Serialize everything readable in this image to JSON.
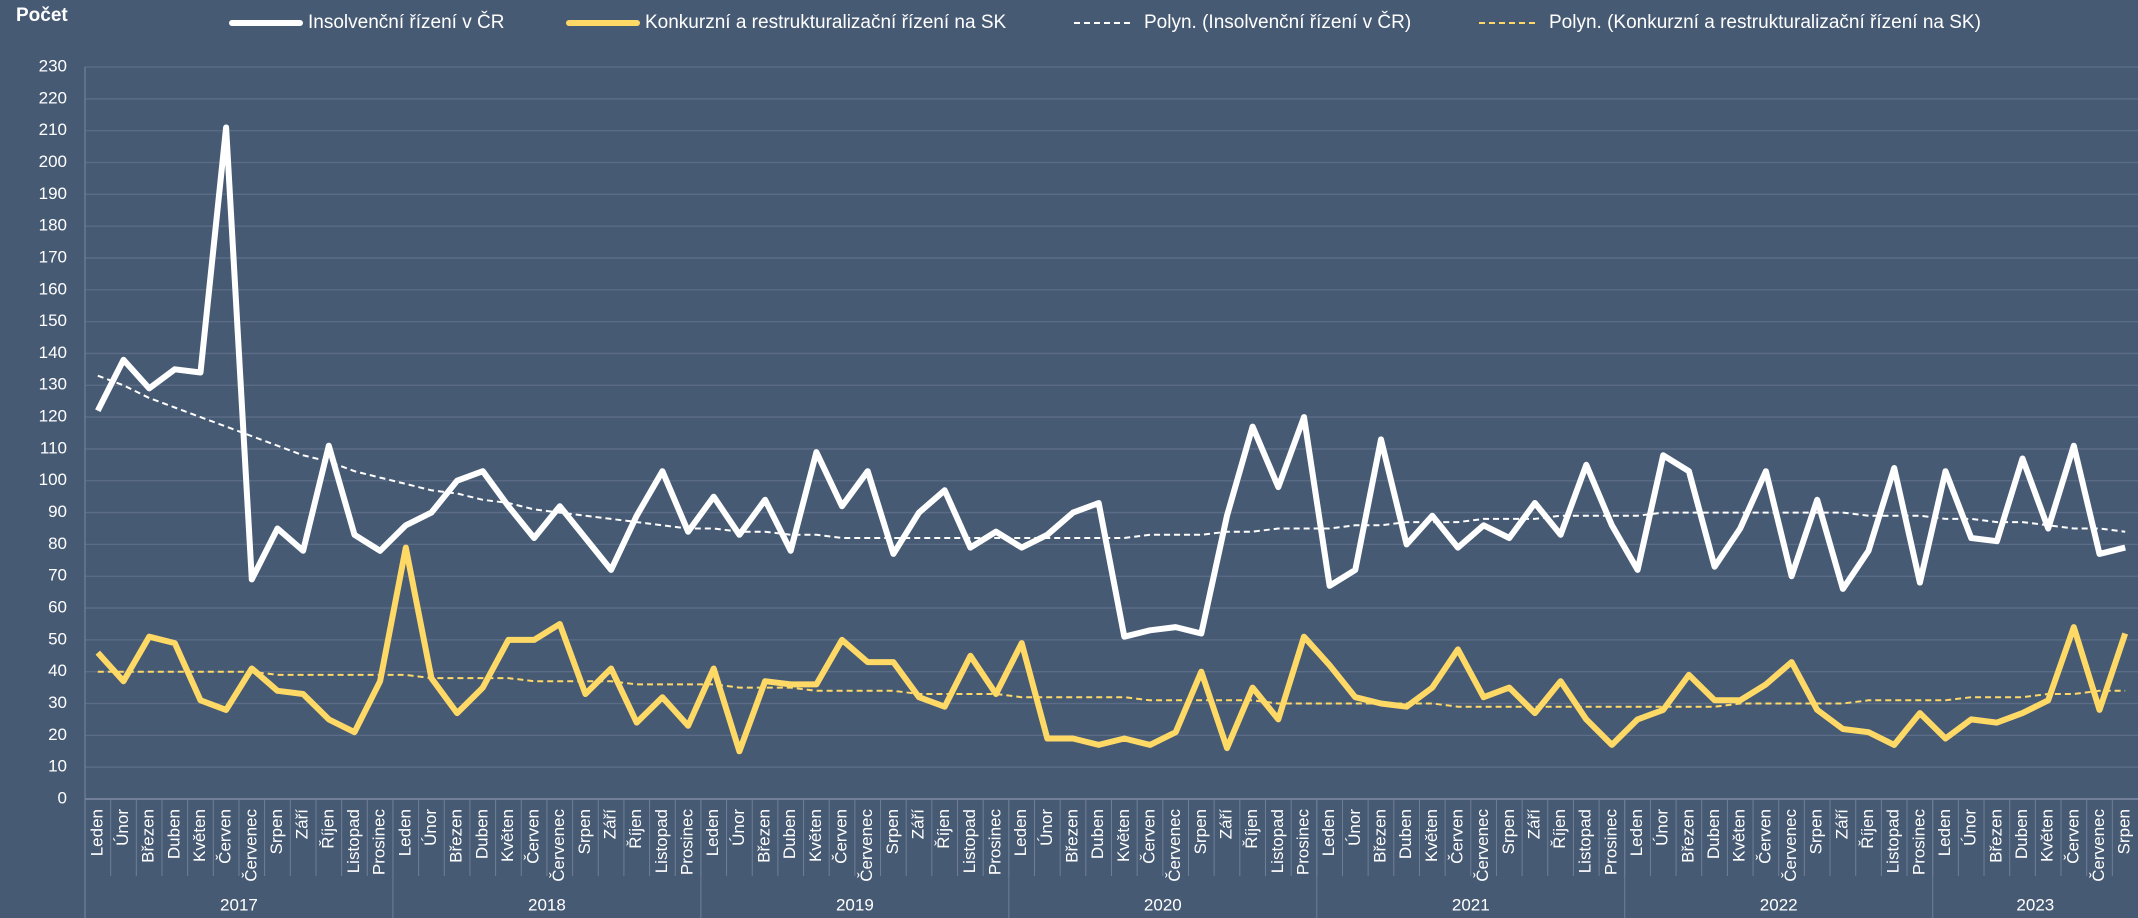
{
  "chart_data": {
    "type": "line",
    "y_label": "Počet",
    "categories": [
      "Leden",
      "Únor",
      "Březen",
      "Duben",
      "Květen",
      "Červen",
      "Červenec",
      "Srpen",
      "Září",
      "Říjen",
      "Listopad",
      "Prosinec",
      "Leden",
      "Únor",
      "Březen",
      "Duben",
      "Květen",
      "Červen",
      "Červenec",
      "Srpen",
      "Září",
      "Říjen",
      "Listopad",
      "Prosinec",
      "Leden",
      "Únor",
      "Březen",
      "Duben",
      "Květen",
      "Červen",
      "Červenec",
      "Srpen",
      "Září",
      "Říjen",
      "Listopad",
      "Prosinec",
      "Leden",
      "Únor",
      "Březen",
      "Duben",
      "Květen",
      "Červen",
      "Červenec",
      "Srpen",
      "Září",
      "Říjen",
      "Listopad",
      "Prosinec",
      "Leden",
      "Únor",
      "Březen",
      "Duben",
      "Květen",
      "Červen",
      "Červenec",
      "Srpen",
      "Září",
      "Říjen",
      "Listopad",
      "Prosinec",
      "Leden",
      "Únor",
      "Březen",
      "Duben",
      "Květen",
      "Červen",
      "Červenec",
      "Srpen",
      "Září",
      "Říjen",
      "Listopad",
      "Prosinec",
      "Leden",
      "Únor",
      "Březen",
      "Duben",
      "Květen",
      "Červen",
      "Červenec",
      "Srpen"
    ],
    "years": [
      "2017",
      "2018",
      "2019",
      "2020",
      "2021",
      "2022",
      "2023"
    ],
    "series": [
      {
        "name": "Insolvenční řízení v ČR",
        "color": "#ffffff",
        "dashed": false,
        "values": [
          122,
          138,
          129,
          135,
          134,
          211,
          69,
          85,
          78,
          111,
          83,
          78,
          86,
          90,
          100,
          103,
          92,
          82,
          92,
          82,
          72,
          89,
          103,
          84,
          95,
          83,
          94,
          78,
          109,
          92,
          103,
          77,
          90,
          97,
          79,
          84,
          79,
          83,
          90,
          93,
          51,
          53,
          54,
          52,
          89,
          117,
          98,
          120,
          67,
          72,
          113,
          80,
          89,
          79,
          86,
          82,
          93,
          83,
          105,
          86,
          72,
          108,
          103,
          73,
          85,
          103,
          70,
          94,
          66,
          78,
          104,
          68,
          103,
          82,
          81,
          107,
          85,
          111,
          77,
          79
        ]
      },
      {
        "name": "Konkurzní a restrukturalizační řízení na SK",
        "color": "#ffd966",
        "dashed": false,
        "values": [
          46,
          37,
          51,
          49,
          31,
          28,
          41,
          34,
          33,
          25,
          21,
          37,
          79,
          38,
          27,
          35,
          50,
          50,
          55,
          33,
          41,
          24,
          32,
          23,
          41,
          15,
          37,
          36,
          36,
          50,
          43,
          43,
          32,
          29,
          45,
          33,
          49,
          19,
          19,
          17,
          19,
          17,
          21,
          40,
          16,
          35,
          25,
          51,
          42,
          32,
          30,
          29,
          35,
          47,
          32,
          35,
          27,
          37,
          25,
          17,
          25,
          28,
          39,
          31,
          31,
          36,
          43,
          28,
          22,
          21,
          17,
          27,
          19,
          25,
          24,
          27,
          31,
          54,
          28,
          52
        ]
      },
      {
        "name": "Polyn. (Insolvenční řízení v ČR)",
        "color": "#ffffff",
        "dashed": true,
        "values": [
          133,
          130,
          126,
          123,
          120,
          117,
          114,
          111,
          108,
          106,
          103,
          101,
          99,
          97,
          96,
          94,
          93,
          91,
          90,
          89,
          88,
          87,
          86,
          85,
          85,
          84,
          84,
          83,
          83,
          82,
          82,
          82,
          82,
          82,
          82,
          82,
          82,
          82,
          82,
          82,
          82,
          83,
          83,
          83,
          84,
          84,
          85,
          85,
          85,
          86,
          86,
          87,
          87,
          87,
          88,
          88,
          88,
          89,
          89,
          89,
          89,
          90,
          90,
          90,
          90,
          90,
          90,
          90,
          90,
          89,
          89,
          89,
          88,
          88,
          87,
          87,
          86,
          85,
          85,
          84
        ]
      },
      {
        "name": "Polyn. (Konkurzní a restrukturalizační řízení na SK)",
        "color": "#ffd966",
        "dashed": true,
        "values": [
          40,
          40,
          40,
          40,
          40,
          40,
          40,
          39,
          39,
          39,
          39,
          39,
          39,
          38,
          38,
          38,
          38,
          37,
          37,
          37,
          37,
          36,
          36,
          36,
          36,
          35,
          35,
          35,
          34,
          34,
          34,
          34,
          33,
          33,
          33,
          33,
          32,
          32,
          32,
          32,
          32,
          31,
          31,
          31,
          31,
          31,
          30,
          30,
          30,
          30,
          30,
          30,
          30,
          29,
          29,
          29,
          29,
          29,
          29,
          29,
          29,
          29,
          29,
          29,
          30,
          30,
          30,
          30,
          30,
          31,
          31,
          31,
          31,
          32,
          32,
          32,
          33,
          33,
          34,
          34
        ]
      }
    ],
    "ylim": [
      0,
      230
    ],
    "yticks": [
      0,
      10,
      20,
      30,
      40,
      50,
      60,
      70,
      80,
      90,
      100,
      110,
      120,
      130,
      140,
      150,
      160,
      170,
      180,
      190,
      200,
      210,
      220,
      230
    ],
    "grid": true
  }
}
